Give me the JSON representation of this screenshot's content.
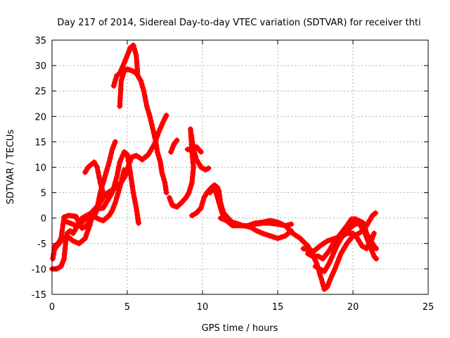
{
  "chart_data": {
    "type": "scatter",
    "title": "Day 217 of 2014, Sidereal Day-to-day VTEC variation (SDTVAR) for receiver thti",
    "xlabel": "GPS time / hours",
    "ylabel": "SDTVAR / TECUs",
    "xlim": [
      0,
      25
    ],
    "ylim": [
      -15,
      35
    ],
    "xticks": [
      0,
      5,
      10,
      15,
      20,
      25
    ],
    "yticks": [
      -15,
      -10,
      -5,
      0,
      5,
      10,
      15,
      20,
      25,
      30,
      35
    ],
    "grid": true,
    "legend": "none",
    "marker": "plus",
    "color": "#ff0000",
    "series": [
      {
        "points": [
          [
            0,
            -10
          ],
          [
            0.3,
            -10
          ],
          [
            0.6,
            -9.5
          ],
          [
            0.8,
            -8
          ],
          [
            0.9,
            -5
          ],
          [
            1.0,
            -3
          ],
          [
            1.2,
            -2.5
          ],
          [
            1.4,
            -3
          ],
          [
            1.6,
            -2
          ],
          [
            1.8,
            -1
          ],
          [
            2.0,
            0
          ],
          [
            2.3,
            0.5
          ],
          [
            2.6,
            1
          ],
          [
            2.9,
            2
          ],
          [
            3.2,
            3
          ],
          [
            3.5,
            4.5
          ],
          [
            3.8,
            5.2
          ],
          [
            4.0,
            5.5
          ],
          [
            4.3,
            6
          ],
          [
            4.6,
            7
          ],
          [
            4.9,
            8.5
          ],
          [
            5.1,
            10.5
          ],
          [
            5.3,
            12
          ],
          [
            5.6,
            12.3
          ],
          [
            6.0,
            11.5
          ],
          [
            6.4,
            12.5
          ],
          [
            6.8,
            14.5
          ],
          [
            7.1,
            17
          ],
          [
            7.4,
            19
          ],
          [
            7.6,
            20.2
          ]
        ]
      },
      {
        "points": [
          [
            0.05,
            -8
          ],
          [
            0.2,
            -5.5
          ],
          [
            0.4,
            -5
          ],
          [
            0.6,
            -4
          ],
          [
            0.8,
            0.2
          ],
          [
            1.1,
            0.5
          ],
          [
            1.4,
            0.4
          ],
          [
            1.6,
            0.3
          ],
          [
            1.8,
            -1
          ],
          [
            2.0,
            -2
          ],
          [
            2.3,
            -1.5
          ],
          [
            2.5,
            -0.5
          ],
          [
            2.7,
            0
          ],
          [
            2.9,
            1
          ],
          [
            3.0,
            2
          ],
          [
            3.2,
            5
          ],
          [
            3.4,
            7
          ],
          [
            3.6,
            9
          ],
          [
            3.8,
            11
          ],
          [
            4.0,
            13.5
          ],
          [
            4.2,
            15
          ]
        ]
      },
      {
        "points": [
          [
            0.2,
            -6
          ],
          [
            0.6,
            -4.5
          ],
          [
            1.0,
            -3.5
          ],
          [
            1.4,
            -4.5
          ],
          [
            1.8,
            -5
          ],
          [
            2.2,
            -4
          ],
          [
            2.5,
            -1.5
          ],
          [
            2.7,
            1
          ],
          [
            3.0,
            1.8
          ],
          [
            3.4,
            2
          ],
          [
            3.7,
            3.5
          ],
          [
            4.0,
            5
          ],
          [
            4.3,
            8
          ],
          [
            4.5,
            11
          ],
          [
            4.8,
            13
          ],
          [
            5.0,
            12.5
          ],
          [
            5.2,
            9
          ],
          [
            5.4,
            5
          ],
          [
            5.6,
            2
          ],
          [
            5.7,
            0
          ],
          [
            5.75,
            -1
          ]
        ]
      },
      {
        "points": [
          [
            0.8,
            -0.5
          ],
          [
            1.2,
            -1
          ],
          [
            1.6,
            -1.5
          ],
          [
            2.0,
            -0.8
          ],
          [
            2.4,
            0.5
          ],
          [
            2.8,
            0.3
          ],
          [
            3.1,
            -0.2
          ],
          [
            3.4,
            -0.5
          ],
          [
            3.6,
            0
          ],
          [
            3.8,
            0.5
          ],
          [
            4.0,
            1.5
          ],
          [
            4.2,
            3
          ],
          [
            4.5,
            6
          ],
          [
            4.8,
            9.5
          ]
        ]
      },
      {
        "points": [
          [
            2.2,
            9
          ],
          [
            2.4,
            10
          ],
          [
            2.6,
            10.5
          ],
          [
            2.8,
            11
          ],
          [
            3.0,
            10
          ],
          [
            3.2,
            7
          ],
          [
            3.4,
            5
          ],
          [
            3.6,
            4.5
          ]
        ]
      },
      {
        "points": [
          [
            4.1,
            26
          ],
          [
            4.3,
            28
          ],
          [
            4.5,
            28.5
          ],
          [
            4.8,
            30.5
          ],
          [
            5.0,
            32
          ],
          [
            5.2,
            33.5
          ],
          [
            5.4,
            34
          ],
          [
            5.6,
            32
          ],
          [
            5.7,
            28
          ]
        ]
      },
      {
        "points": [
          [
            4.5,
            22
          ],
          [
            4.6,
            27
          ],
          [
            4.8,
            29
          ],
          [
            5.0,
            29.3
          ],
          [
            5.3,
            29
          ],
          [
            5.6,
            28.5
          ],
          [
            5.9,
            27
          ],
          [
            6.1,
            25
          ],
          [
            6.3,
            22
          ],
          [
            6.5,
            20
          ],
          [
            6.7,
            17.5
          ],
          [
            6.9,
            15
          ],
          [
            7.0,
            13
          ],
          [
            7.2,
            11
          ],
          [
            7.3,
            9
          ],
          [
            7.5,
            7
          ],
          [
            7.6,
            5
          ]
        ]
      },
      {
        "points": [
          [
            7.8,
            4
          ],
          [
            8.0,
            2.5
          ],
          [
            8.3,
            2.2
          ],
          [
            8.6,
            3
          ],
          [
            8.9,
            4
          ],
          [
            9.1,
            5
          ],
          [
            9.3,
            7
          ],
          [
            9.4,
            10
          ],
          [
            9.3,
            13
          ],
          [
            9.2,
            17.5
          ],
          [
            9.4,
            13.5
          ],
          [
            9.6,
            11.5
          ],
          [
            9.9,
            10
          ],
          [
            10.2,
            9.5
          ],
          [
            10.4,
            9.8
          ]
        ]
      },
      {
        "points": [
          [
            7.9,
            13
          ],
          [
            8.1,
            14.5
          ],
          [
            8.3,
            15.3
          ]
        ]
      },
      {
        "points": [
          [
            9.0,
            13.5
          ],
          [
            9.3,
            13.5
          ],
          [
            9.6,
            14
          ],
          [
            9.9,
            13
          ]
        ]
      },
      {
        "points": [
          [
            9.3,
            0.5
          ],
          [
            9.6,
            1
          ],
          [
            9.9,
            2
          ],
          [
            10.1,
            4
          ],
          [
            10.3,
            5
          ],
          [
            10.6,
            6
          ],
          [
            10.8,
            6.5
          ],
          [
            11.0,
            6
          ],
          [
            11.1,
            5.2
          ],
          [
            11.2,
            3
          ],
          [
            11.4,
            1
          ],
          [
            11.7,
            0
          ],
          [
            12.0,
            -1
          ],
          [
            12.5,
            -1.5
          ],
          [
            13,
            -1.5
          ],
          [
            13.5,
            -1.2
          ],
          [
            14,
            -1
          ],
          [
            14.5,
            -1
          ],
          [
            15,
            -1.2
          ],
          [
            15.5,
            -1.5
          ],
          [
            15.9,
            -1.2
          ]
        ]
      },
      {
        "points": [
          [
            10.5,
            5
          ],
          [
            10.8,
            6
          ],
          [
            11.0,
            4
          ],
          [
            11.3,
            1
          ],
          [
            11.7,
            -0.5
          ],
          [
            12.2,
            -1
          ],
          [
            12.7,
            -1.5
          ],
          [
            13.2,
            -1.8
          ],
          [
            13.6,
            -2.5
          ],
          [
            14.0,
            -3
          ],
          [
            14.5,
            -3.5
          ],
          [
            15.0,
            -4
          ],
          [
            15.5,
            -3.5
          ],
          [
            15.9,
            -2.5
          ]
        ]
      },
      {
        "points": [
          [
            11.2,
            0
          ],
          [
            11.6,
            -0.5
          ],
          [
            12.0,
            -1.5
          ],
          [
            12.5,
            -1.5
          ],
          [
            13.0,
            -1.5
          ],
          [
            13.5,
            -1
          ],
          [
            14,
            -0.8
          ],
          [
            14.5,
            -0.5
          ],
          [
            15,
            -0.8
          ],
          [
            15.5,
            -1.5
          ],
          [
            16,
            -3
          ],
          [
            16.5,
            -4
          ],
          [
            17,
            -5.5
          ],
          [
            17.3,
            -7
          ],
          [
            17.6,
            -9
          ],
          [
            17.9,
            -12
          ],
          [
            18.1,
            -14
          ],
          [
            18.3,
            -13.5
          ],
          [
            18.5,
            -12
          ],
          [
            18.8,
            -10
          ],
          [
            19.2,
            -7
          ],
          [
            19.6,
            -5
          ],
          [
            20.0,
            -3.5
          ],
          [
            20.4,
            -3
          ],
          [
            20.8,
            -2
          ],
          [
            21.1,
            -0.5
          ],
          [
            21.3,
            0.5
          ],
          [
            21.5,
            1
          ]
        ]
      },
      {
        "points": [
          [
            17.5,
            -9.5
          ],
          [
            17.8,
            -10
          ],
          [
            18.1,
            -10.5
          ],
          [
            18.4,
            -9
          ],
          [
            18.7,
            -7
          ],
          [
            19.0,
            -5
          ],
          [
            19.4,
            -3
          ],
          [
            19.8,
            -2
          ],
          [
            20.1,
            -1
          ],
          [
            20.4,
            -0.5
          ],
          [
            20.7,
            -1
          ],
          [
            20.9,
            -3
          ],
          [
            21.2,
            -4.5
          ],
          [
            21.4,
            -5.5
          ],
          [
            21.55,
            -6
          ]
        ]
      },
      {
        "points": [
          [
            17.0,
            -7
          ],
          [
            17.3,
            -7.5
          ],
          [
            17.7,
            -7.5
          ],
          [
            18.0,
            -8
          ],
          [
            18.4,
            -6.5
          ],
          [
            18.8,
            -4.5
          ],
          [
            19.2,
            -3
          ],
          [
            19.6,
            -1.5
          ],
          [
            19.9,
            -0.2
          ],
          [
            20.2,
            -0.2
          ],
          [
            20.5,
            -1.5
          ],
          [
            20.8,
            -3
          ],
          [
            21.0,
            -4.5
          ],
          [
            21.2,
            -6
          ],
          [
            21.4,
            -7.5
          ],
          [
            21.55,
            -8
          ]
        ]
      },
      {
        "points": [
          [
            16.7,
            -6
          ],
          [
            17.0,
            -6.2
          ],
          [
            17.4,
            -6.5
          ],
          [
            17.8,
            -5.5
          ],
          [
            18.3,
            -4.5
          ],
          [
            18.8,
            -4
          ],
          [
            19.3,
            -3.5
          ],
          [
            19.6,
            -3
          ],
          [
            20.0,
            -3
          ],
          [
            20.3,
            -4
          ],
          [
            20.6,
            -5.5
          ],
          [
            20.9,
            -6
          ],
          [
            21.2,
            -4.5
          ],
          [
            21.4,
            -3
          ]
        ]
      },
      {
        "points": [
          [
            18.8,
            -6
          ],
          [
            19.2,
            -4
          ],
          [
            19.6,
            -2.5
          ],
          [
            20.0,
            -1.5
          ],
          [
            20.3,
            -1
          ],
          [
            20.6,
            -0.8
          ]
        ]
      }
    ]
  }
}
